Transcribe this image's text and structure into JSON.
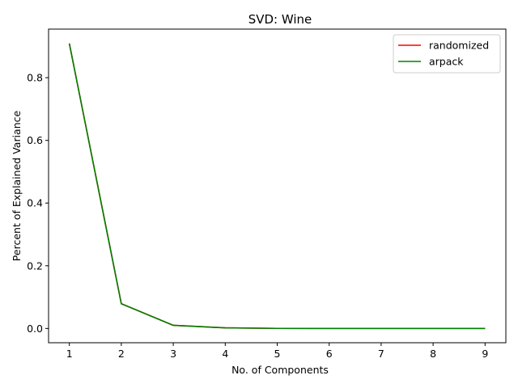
{
  "chart_data": {
    "type": "line",
    "title": "SVD: Wine",
    "xlabel": "No. of Components",
    "ylabel": "Percent of Explained Variance",
    "x": [
      1,
      2,
      3,
      4,
      5,
      6,
      7,
      8,
      9
    ],
    "xlim": [
      0.6,
      9.4
    ],
    "ylim": [
      -0.0455,
      0.955
    ],
    "xticks": [
      1,
      2,
      3,
      4,
      5,
      6,
      7,
      8,
      9
    ],
    "yticks": [
      0.0,
      0.2,
      0.4,
      0.6,
      0.8
    ],
    "ytick_labels": [
      "0.0",
      "0.2",
      "0.4",
      "0.6",
      "0.8"
    ],
    "series": [
      {
        "name": "randomized",
        "color": "#ff0000",
        "values": [
          0.909,
          0.079,
          0.01,
          0.002,
          0.0003,
          0.0001,
          0.0,
          0.0,
          0.0
        ]
      },
      {
        "name": "arpack",
        "color": "#008000",
        "values": [
          0.909,
          0.079,
          0.01,
          0.002,
          0.0003,
          0.0001,
          0.0,
          0.0,
          0.0
        ]
      }
    ],
    "grid": false,
    "legend_position": "top-right"
  }
}
